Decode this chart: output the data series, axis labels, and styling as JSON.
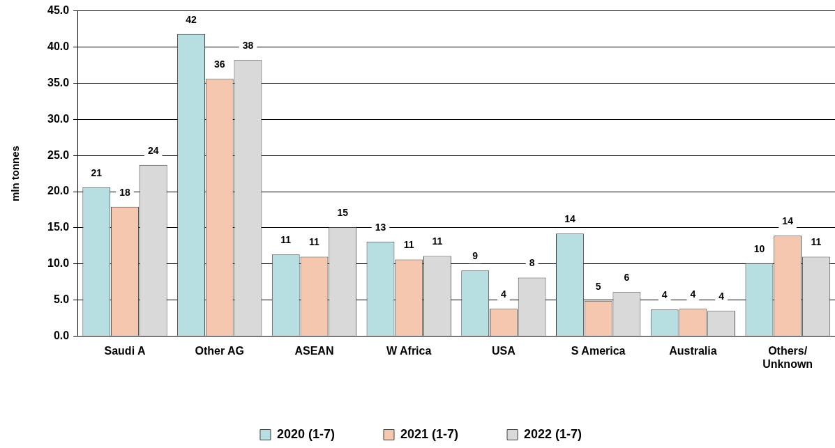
{
  "chart_data": {
    "type": "bar",
    "ylabel": "mln tonnes",
    "categories": [
      "Saudi A",
      "Other AG",
      "ASEAN",
      "W Africa",
      "USA",
      "S America",
      "Australia",
      "Others/ Unknown"
    ],
    "series": [
      {
        "name": "2020 (1-7)",
        "color": "#b7dee0",
        "values": [
          20.6,
          41.8,
          11.3,
          13.1,
          9.1,
          14.2,
          3.7,
          10.1
        ],
        "value_labels": [
          "21",
          "42",
          "11",
          "13",
          "9",
          "14",
          "4",
          "10"
        ]
      },
      {
        "name": "2021 (1-7)",
        "color": "#f4c7ae",
        "values": [
          17.9,
          35.6,
          11.0,
          10.6,
          3.8,
          4.9,
          3.8,
          13.9
        ],
        "value_labels": [
          "18",
          "36",
          "11",
          "11",
          "4",
          "5",
          "4",
          "14"
        ]
      },
      {
        "name": "2022 (1-7)",
        "color": "#d9d9d9",
        "values": [
          23.7,
          38.2,
          15.1,
          11.1,
          8.1,
          6.1,
          3.5,
          11.0
        ],
        "value_labels": [
          "24",
          "38",
          "15",
          "11",
          "8",
          "6",
          "4",
          "11"
        ]
      }
    ],
    "ylim": [
      0,
      45
    ],
    "yticks": [
      {
        "value": 0,
        "label": "0.0"
      },
      {
        "value": 5,
        "label": "5.0"
      },
      {
        "value": 10,
        "label": "10.0"
      },
      {
        "value": 15,
        "label": "15.0"
      },
      {
        "value": 20,
        "label": "20.0"
      },
      {
        "value": 25,
        "label": "25.0"
      },
      {
        "value": 30,
        "label": "30.0"
      },
      {
        "value": 35,
        "label": "35.0"
      },
      {
        "value": 40,
        "label": "40.0"
      },
      {
        "value": 45,
        "label": "45.0"
      }
    ],
    "grid": "y",
    "legend": "bottom"
  }
}
